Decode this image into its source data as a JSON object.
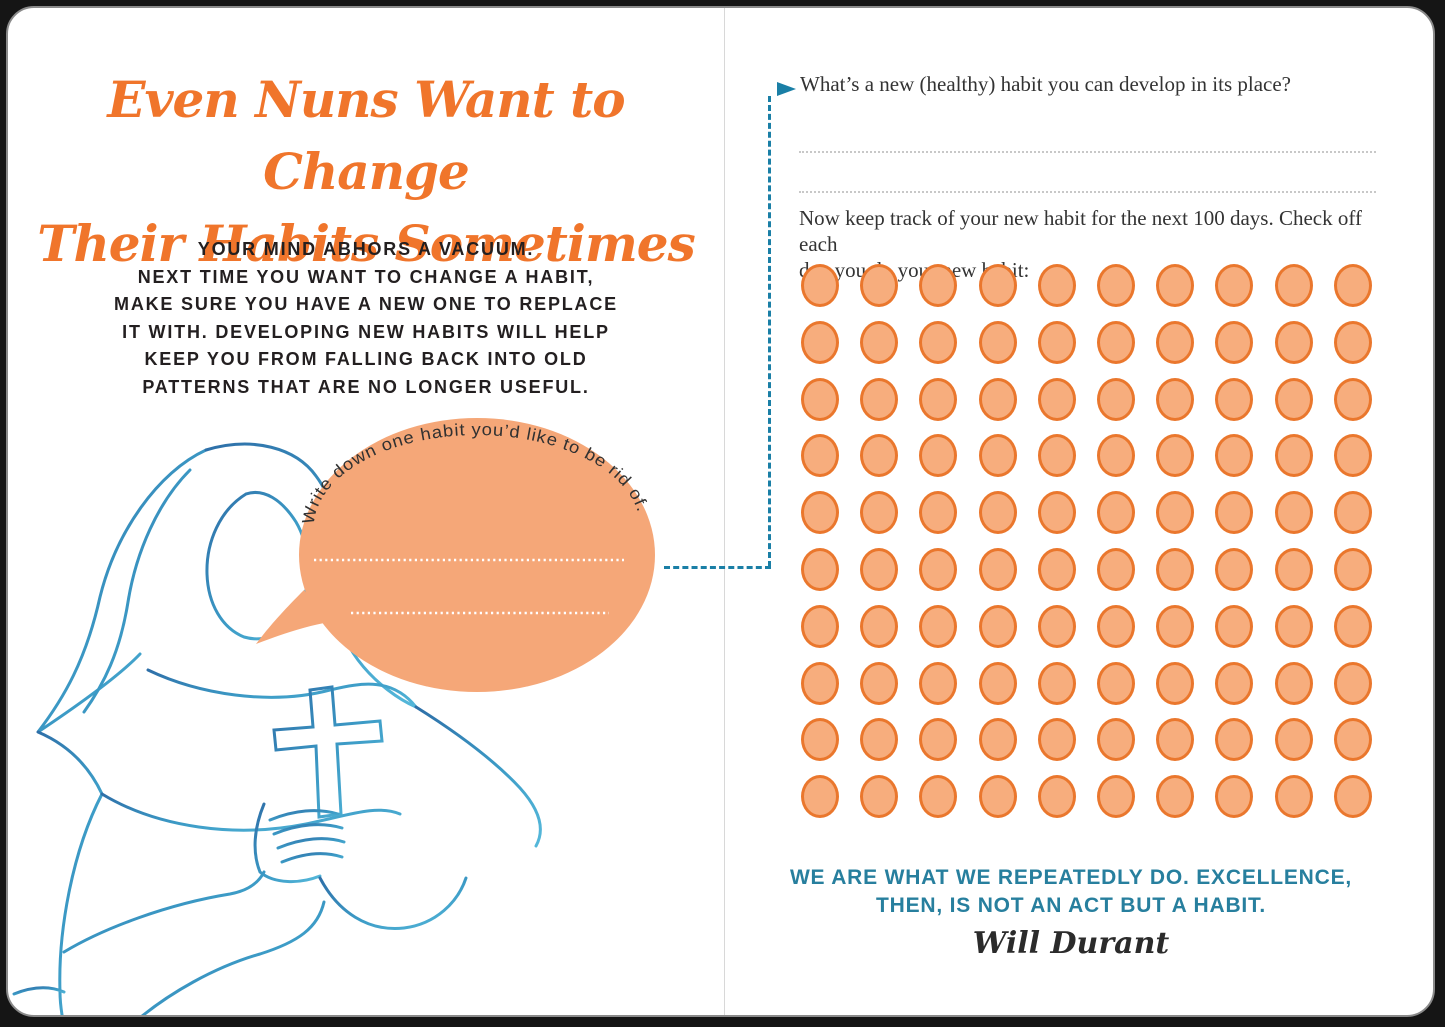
{
  "colors": {
    "title_orange": "#F0752B",
    "bubble_orange": "#F5A778",
    "circle_fill": "#F7AD7D",
    "circle_stroke": "#EA772D",
    "teal_connector": "#1A7FA6",
    "quote_teal": "#277F9E",
    "ink_dark": "#231F20",
    "line_gray": "#C8C8C8",
    "gutter_gray": "#D8D8D8",
    "drawing_blue_dark": "#2E6FA8",
    "drawing_blue_light": "#55B8DA"
  },
  "left": {
    "title_line1": "Even Nuns Want to Change",
    "title_line2": "Their Habits Sometimes",
    "intro_lines": [
      "YOUR MIND ABHORS A VACUUM.",
      "NEXT TIME YOU WANT TO CHANGE A HABIT,",
      "MAKE SURE YOU HAVE A NEW ONE TO REPLACE",
      "IT WITH. DEVELOPING NEW HABITS WILL HELP",
      "KEEP YOU FROM FALLING BACK INTO OLD",
      "PATTERNS THAT ARE NO LONGER USEFUL."
    ],
    "illustration": "nun-line-drawing-holding-cross",
    "bubble": {
      "prompt": "Write down one habit you’d like to be rid of.",
      "writing_lines": 2
    }
  },
  "right": {
    "question": "What’s a new (healthy) habit you can develop in its place?",
    "writing_lines": 2,
    "instruction_lines": [
      "Now keep track of your new habit for the next 100 days. Check off each",
      "day you do your new habit:"
    ],
    "tracker": {
      "rows": 10,
      "cols": 10,
      "total_days": 100
    },
    "quote_line1": "WE ARE WHAT WE REPEATEDLY DO. EXCELLENCE,",
    "quote_line2": "THEN, IS NOT AN ACT BUT A HABIT.",
    "quote_author": "Will Durant"
  }
}
